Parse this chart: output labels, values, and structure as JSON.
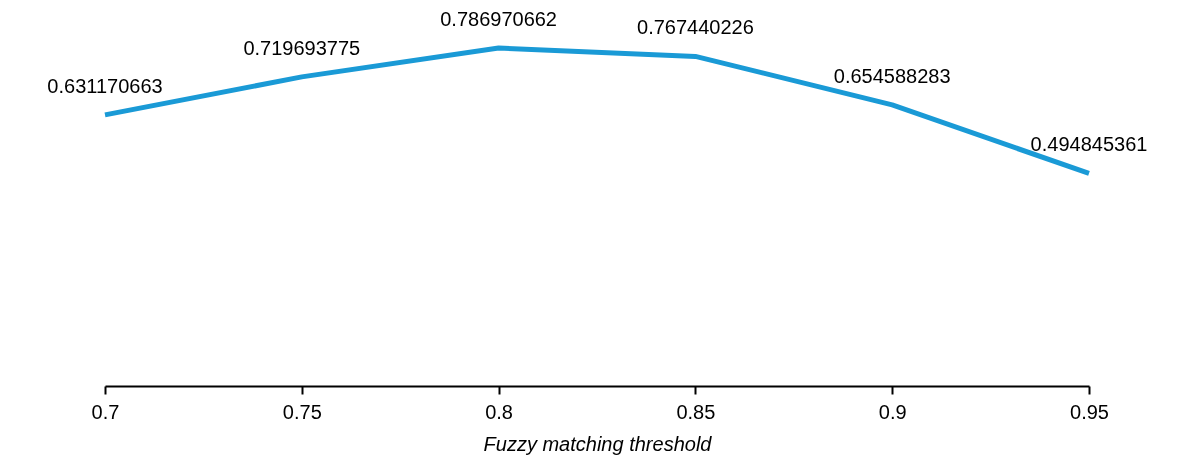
{
  "chart_data": {
    "type": "line",
    "xlabel": "Fuzzy matching threshold",
    "categories": [
      "0.7",
      "0.75",
      "0.8",
      "0.85",
      "0.9",
      "0.95"
    ],
    "series": [
      {
        "color": "#1a9ad6",
        "values": [
          0.631170663,
          0.719693775,
          0.786970662,
          0.767440226,
          0.654588283,
          0.494845361
        ]
      }
    ],
    "data_labels": true,
    "grid": false,
    "legend": false,
    "marker": "none",
    "line_style": "solid"
  }
}
